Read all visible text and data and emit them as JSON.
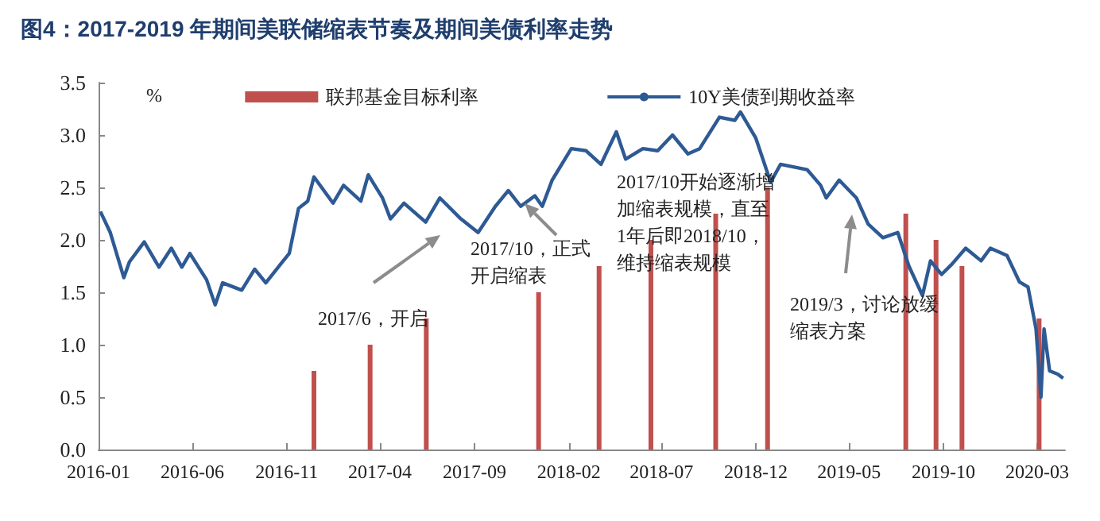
{
  "chart_data": {
    "type": "line",
    "title": "图4：2017-2019 年期间美联储缩表节奏及期间美债利率走势",
    "ylabel": "%",
    "xlim": [
      "2016-01-01",
      "2020-04-15"
    ],
    "xticks": [
      "2016-01",
      "2016-06",
      "2016-11",
      "2017-04",
      "2017-09",
      "2018-02",
      "2018-07",
      "2018-12",
      "2019-05",
      "2019-10",
      "2020-03"
    ],
    "ylim": [
      0,
      3.5
    ],
    "yticks": [
      {
        "value": 0,
        "label": "0.0"
      },
      0.5,
      {
        "value": 1,
        "label": "1.0"
      },
      1.5,
      {
        "value": 2,
        "label": "2.0"
      },
      2.5,
      {
        "value": 3,
        "label": "3.0"
      },
      3.5
    ],
    "series": [
      {
        "name": "联邦基金目标利率",
        "type": "bar",
        "color": "#c0504d",
        "x": [
          "2016-12-15",
          "2017-03-16",
          "2017-06-15",
          "2017-12-14",
          "2018-03-22",
          "2018-06-14",
          "2018-09-27",
          "2018-12-20",
          "2019-08-01",
          "2019-09-19",
          "2019-10-31",
          "2020-03-04"
        ],
        "values": [
          0.75,
          1.0,
          1.25,
          1.5,
          1.75,
          2.0,
          2.25,
          2.5,
          2.25,
          2.0,
          1.75,
          1.25
        ]
      },
      {
        "name": "10Y美债到期收益率",
        "color": "#2e5a94",
        "x": [
          "2016-01-04",
          "2016-01-20",
          "2016-02-11",
          "2016-02-20",
          "2016-03-15",
          "2016-04-08",
          "2016-04-28",
          "2016-05-15",
          "2016-05-28",
          "2016-06-24",
          "2016-07-08",
          "2016-07-20",
          "2016-08-20",
          "2016-09-10",
          "2016-09-28",
          "2016-10-25",
          "2016-11-05",
          "2016-11-20",
          "2016-12-05",
          "2016-12-15",
          "2017-01-15",
          "2017-02-01",
          "2017-03-01",
          "2017-03-13",
          "2017-04-05",
          "2017-04-18",
          "2017-05-10",
          "2017-06-14",
          "2017-07-07",
          "2017-08-10",
          "2017-09-07",
          "2017-10-05",
          "2017-10-26",
          "2017-11-15",
          "2017-12-08",
          "2017-12-20",
          "2018-01-05",
          "2018-02-05",
          "2018-03-01",
          "2018-03-25",
          "2018-04-19",
          "2018-05-04",
          "2018-06-01",
          "2018-06-25",
          "2018-07-19",
          "2018-08-13",
          "2018-09-01",
          "2018-10-03",
          "2018-10-28",
          "2018-11-06",
          "2018-12-01",
          "2018-12-25",
          "2019-01-10",
          "2019-02-22",
          "2019-03-16",
          "2019-03-25",
          "2019-04-15",
          "2019-05-13",
          "2019-06-01",
          "2019-06-25",
          "2019-07-19",
          "2019-08-06",
          "2019-08-28",
          "2019-09-10",
          "2019-09-28",
          "2019-10-15",
          "2019-11-06",
          "2019-12-01",
          "2019-12-16",
          "2020-01-12",
          "2020-02-01",
          "2020-02-15",
          "2020-02-28",
          "2020-03-07",
          "2020-03-12",
          "2020-03-21",
          "2020-04-03",
          "2020-04-12"
        ],
        "values": [
          2.27,
          2.07,
          1.64,
          1.79,
          1.98,
          1.74,
          1.92,
          1.74,
          1.87,
          1.62,
          1.38,
          1.59,
          1.52,
          1.72,
          1.59,
          1.79,
          1.87,
          2.3,
          2.37,
          2.6,
          2.35,
          2.52,
          2.37,
          2.62,
          2.4,
          2.2,
          2.35,
          2.17,
          2.4,
          2.2,
          2.07,
          2.32,
          2.47,
          2.32,
          2.42,
          2.32,
          2.57,
          2.87,
          2.85,
          2.72,
          3.03,
          2.77,
          2.87,
          2.85,
          3.0,
          2.82,
          2.87,
          3.17,
          3.14,
          3.22,
          2.97,
          2.55,
          2.72,
          2.67,
          2.52,
          2.4,
          2.57,
          2.4,
          2.15,
          2.02,
          2.07,
          1.75,
          1.47,
          1.8,
          1.67,
          1.77,
          1.92,
          1.8,
          1.92,
          1.85,
          1.6,
          1.55,
          1.15,
          0.5,
          1.15,
          0.75,
          0.72,
          0.68
        ]
      }
    ],
    "annotations": [
      "2017/6，开启",
      "2017/10，正式开启缩表",
      "2017/10开始逐渐增加缩表规模，直至1年后即2018/10，维持缩表规模",
      "2019/3，讨论放缓缩表方案"
    ],
    "legend": "top",
    "grid": false,
    "marker": "none",
    "line_style": "solid"
  }
}
